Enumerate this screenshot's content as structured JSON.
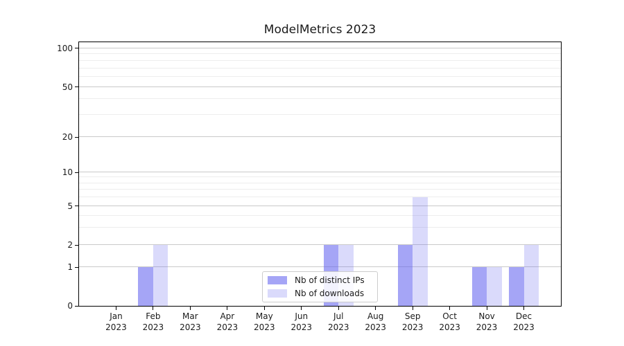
{
  "chart_data": {
    "type": "bar",
    "title": "ModelMetrics 2023",
    "categories": [
      {
        "month": "Jan",
        "year": "2023"
      },
      {
        "month": "Feb",
        "year": "2023"
      },
      {
        "month": "Mar",
        "year": "2023"
      },
      {
        "month": "Apr",
        "year": "2023"
      },
      {
        "month": "May",
        "year": "2023"
      },
      {
        "month": "Jun",
        "year": "2023"
      },
      {
        "month": "Jul",
        "year": "2023"
      },
      {
        "month": "Aug",
        "year": "2023"
      },
      {
        "month": "Sep",
        "year": "2023"
      },
      {
        "month": "Oct",
        "year": "2023"
      },
      {
        "month": "Nov",
        "year": "2023"
      },
      {
        "month": "Dec",
        "year": "2023"
      }
    ],
    "series": [
      {
        "name": "Nb of distinct IPs",
        "color": "rgba(100,100,240,0.58)",
        "values": [
          0,
          1,
          0,
          0,
          0,
          0,
          2,
          0,
          2,
          0,
          1,
          1
        ]
      },
      {
        "name": "Nb of downloads",
        "color": "rgba(100,100,240,0.24)",
        "values": [
          0,
          2,
          0,
          0,
          0,
          0,
          2,
          0,
          6,
          0,
          1,
          2
        ]
      }
    ],
    "y_axis": {
      "scale": "symlog",
      "ticks": [
        0,
        1,
        2,
        5,
        10,
        20,
        50,
        100
      ],
      "range": [
        0,
        100
      ]
    },
    "x_axis": {
      "tick_label_lines": 2
    },
    "grid": {
      "major": true,
      "minor": true
    },
    "legend": {
      "position": "lower center",
      "entries": [
        "Nb of distinct IPs",
        "Nb of downloads"
      ]
    },
    "colors": {
      "grid_major": "#c9c9c9",
      "grid_minor": "#ededed",
      "text": "#1a1a1a",
      "spine": "#000000"
    }
  }
}
